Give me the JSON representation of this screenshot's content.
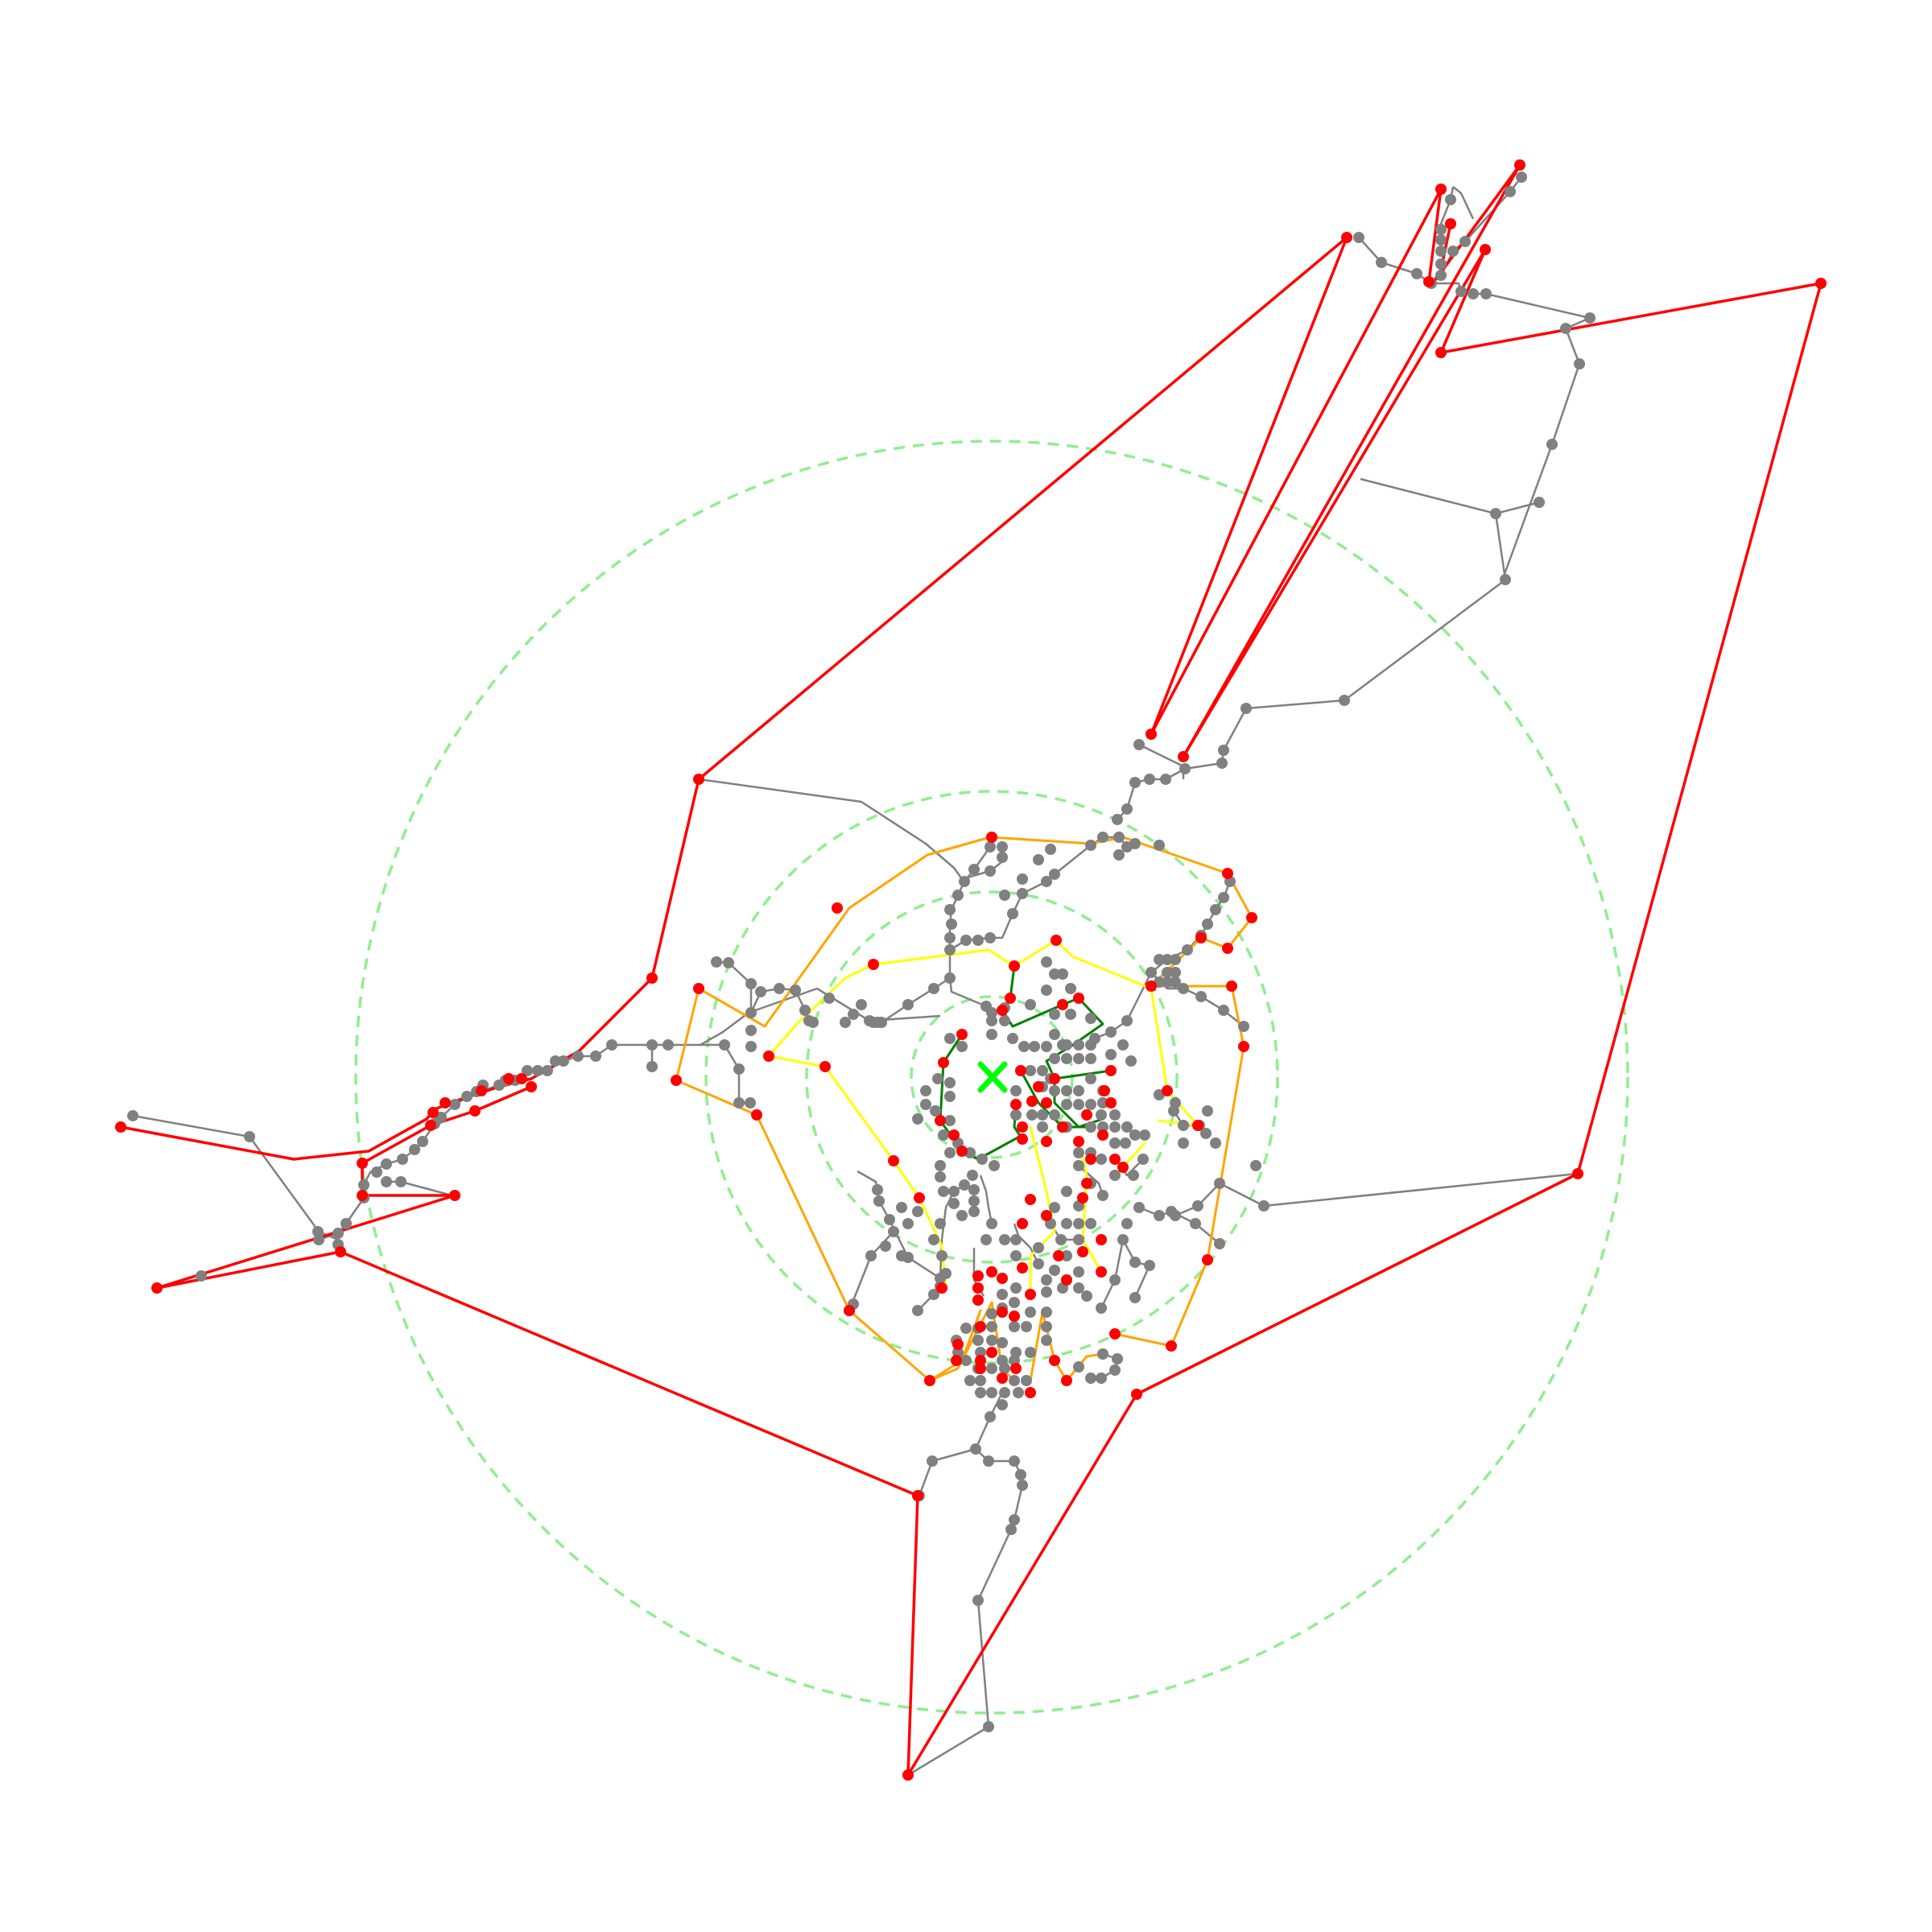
{
  "colors": {
    "background": "#ffffff",
    "base_edge": "#808080",
    "base_node": "#808080",
    "boundary_node": "#ff0000",
    "ring": "#90ee90",
    "center_marker": "#00ff00",
    "tier_1": "#008000",
    "tier_2": "#ffff00",
    "tier_3": "#ffa500",
    "tier_4": "#ff0000"
  },
  "center_marker": {
    "icon": "x-mark-icon"
  },
  "isochrone_rings": 4,
  "tiers": [
    {
      "id": "tier-1",
      "color_key": "tier_1"
    },
    {
      "id": "tier-2",
      "color_key": "tier_2"
    },
    {
      "id": "tier-3",
      "color_key": "tier_3"
    },
    {
      "id": "tier-4",
      "color_key": "tier_4"
    }
  ]
}
